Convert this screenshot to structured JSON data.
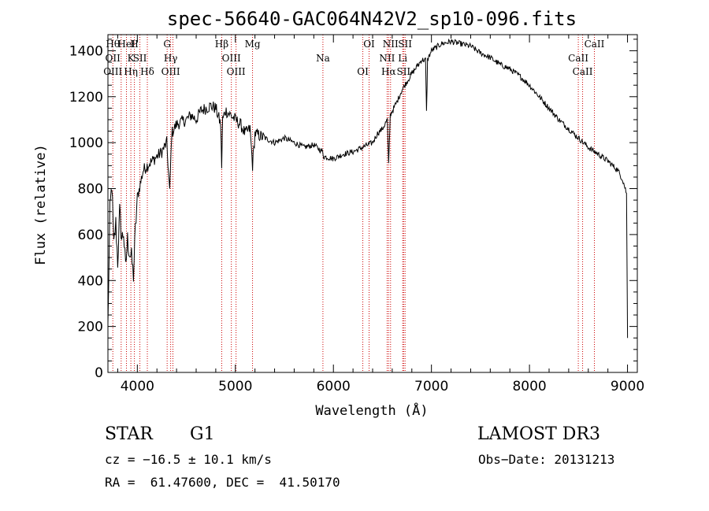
{
  "chart_data": {
    "type": "line",
    "title": "spec-56640-GAC064N42V2_sp10-096.fits",
    "xlabel": "Wavelength (Å)",
    "ylabel": "Flux (relative)",
    "xlim": [
      3700,
      9100
    ],
    "ylim": [
      0,
      1470
    ],
    "xticks": [
      4000,
      5000,
      6000,
      7000,
      8000,
      9000
    ],
    "yticks": [
      0,
      200,
      400,
      600,
      800,
      1000,
      1200,
      1400
    ],
    "series": [
      {
        "name": "flux",
        "x": [
          3700,
          3720,
          3740,
          3760,
          3780,
          3800,
          3820,
          3840,
          3860,
          3880,
          3900,
          3920,
          3940,
          3960,
          3980,
          4000,
          4030,
          4060,
          4100,
          4150,
          4200,
          4250,
          4300,
          4330,
          4350,
          4400,
          4450,
          4500,
          4550,
          4600,
          4650,
          4700,
          4750,
          4800,
          4850,
          4860,
          4870,
          4900,
          4950,
          5000,
          5050,
          5100,
          5150,
          5175,
          5200,
          5300,
          5400,
          5500,
          5600,
          5700,
          5800,
          5890,
          5900,
          6000,
          6100,
          6200,
          6300,
          6400,
          6450,
          6500,
          6550,
          6563,
          6580,
          6650,
          6700,
          6800,
          6900,
          6940,
          6950,
          6960,
          7000,
          7100,
          7200,
          7300,
          7400,
          7500,
          7600,
          7700,
          7800,
          7900,
          8000,
          8100,
          8200,
          8300,
          8400,
          8500,
          8600,
          8700,
          8800,
          8900,
          8950,
          8990
        ],
        "y": [
          200,
          700,
          820,
          550,
          650,
          480,
          700,
          580,
          610,
          450,
          580,
          520,
          500,
          420,
          620,
          760,
          820,
          880,
          900,
          920,
          940,
          960,
          1000,
          780,
          1040,
          1080,
          1090,
          1100,
          1120,
          1100,
          1140,
          1150,
          1160,
          1150,
          1080,
          900,
          1100,
          1140,
          1120,
          1100,
          1080,
          1040,
          1060,
          900,
          1040,
          1020,
          1000,
          1020,
          1000,
          980,
          990,
          960,
          940,
          930,
          950,
          960,
          980,
          1000,
          1040,
          1060,
          1100,
          900,
          1120,
          1180,
          1230,
          1300,
          1360,
          1360,
          1130,
          1360,
          1400,
          1430,
          1440,
          1430,
          1420,
          1390,
          1370,
          1340,
          1320,
          1290,
          1250,
          1200,
          1150,
          1100,
          1060,
          1020,
          980,
          950,
          920,
          880,
          840,
          780
        ]
      }
    ],
    "lines": [
      {
        "x": 3750,
        "labels": [
          "Hθ",
          "OII",
          "OIII"
        ]
      },
      {
        "x": 3835,
        "labels": []
      },
      {
        "x": 3889,
        "labels": [
          "HeI"
        ]
      },
      {
        "x": 3934,
        "labels": [
          "K",
          "Hη"
        ]
      },
      {
        "x": 3970,
        "labels": [
          "H"
        ]
      },
      {
        "x": 4026,
        "labels": [
          "SII"
        ]
      },
      {
        "x": 4102,
        "labels": [
          "Hδ"
        ]
      },
      {
        "x": 4304,
        "labels": [
          "G"
        ]
      },
      {
        "x": 4340,
        "labels": [
          "Hγ",
          "OIII"
        ]
      },
      {
        "x": 4363,
        "labels": []
      },
      {
        "x": 4861,
        "labels": [
          "Hβ"
        ]
      },
      {
        "x": 4959,
        "labels": [
          "OIII"
        ]
      },
      {
        "x": 5007,
        "labels": [
          "OIII"
        ]
      },
      {
        "x": 5175,
        "labels": [
          "Mg"
        ]
      },
      {
        "x": 5893,
        "labels": [
          "Na"
        ]
      },
      {
        "x": 6300,
        "labels": [
          "OI"
        ]
      },
      {
        "x": 6364,
        "labels": [
          "OI"
        ]
      },
      {
        "x": 6548,
        "labels": [
          "NII"
        ]
      },
      {
        "x": 6563,
        "labels": [
          "Hα"
        ]
      },
      {
        "x": 6583,
        "labels": [
          "NII"
        ]
      },
      {
        "x": 6707,
        "labels": [
          "Li"
        ]
      },
      {
        "x": 6716,
        "labels": [
          "SII"
        ]
      },
      {
        "x": 6731,
        "labels": [
          "SII"
        ]
      },
      {
        "x": 8498,
        "labels": [
          "CaII"
        ]
      },
      {
        "x": 8542,
        "labels": [
          "CaII"
        ]
      },
      {
        "x": 8662,
        "labels": [
          "CaII"
        ]
      }
    ]
  },
  "info": {
    "class": "STAR",
    "subclass": "G1",
    "survey": "LAMOST DR3",
    "cz": "cz = −16.5 ± 10.1 km/s",
    "obs_date": "Obs−Date: 20131213",
    "coords": "RA =  61.47600, DEC =  41.50170"
  }
}
